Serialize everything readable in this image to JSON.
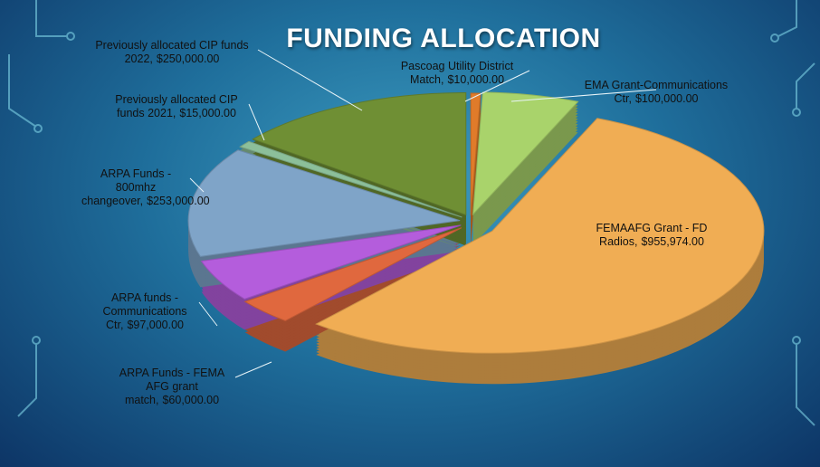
{
  "chart_data": {
    "type": "pie",
    "title": "FUNDING ALLOCATION",
    "categories": [
      "Pascoag Utility District Match,",
      "EMA Grant-Communications Ctr,",
      "FEMAAFG Grant - FD Radios,",
      "ARPA Funds - FEMA AFG grant match,",
      "ARPA funds - Communications Ctr,",
      "ARPA Funds - 800mhz changeover,",
      "Previously allocated CIP funds 2021,",
      "Previously allocated CIP funds 2022,"
    ],
    "values": [
      10000,
      100000,
      955974,
      60000,
      97000,
      253000,
      15000,
      250000
    ],
    "value_labels": [
      "$10,000.00",
      "$100,000.00",
      "$955,974.00",
      "$60,000.00",
      "$97,000.00",
      "$253,000.00",
      "$15,000.00",
      "$250,000.00"
    ],
    "colors": [
      "#e07b2a",
      "#a9d36b",
      "#f0ad54",
      "#e0683e",
      "#b45ddc",
      "#7fa4c8",
      "#8cbf9a",
      "#6f8f34"
    ]
  }
}
